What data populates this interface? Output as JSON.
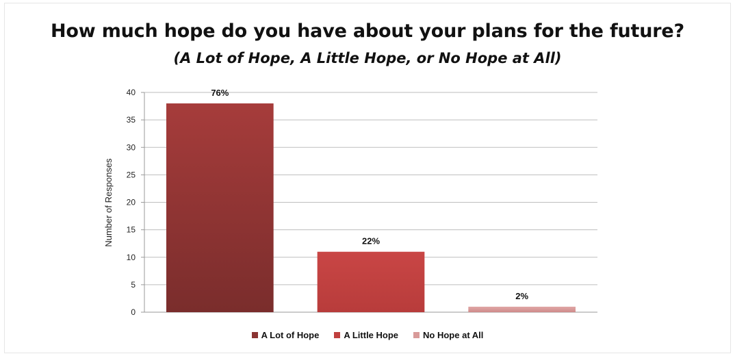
{
  "chart_data": {
    "type": "bar",
    "title": "How much hope do you have about your plans for the future?",
    "subtitle": "(A Lot of Hope, A Little Hope, or No Hope at All)",
    "ylabel": "Number of Responses",
    "xlabel": "",
    "ylim": [
      0,
      40
    ],
    "yticks": [
      0,
      5,
      10,
      15,
      20,
      25,
      30,
      35,
      40
    ],
    "grid": true,
    "legend_position": "bottom",
    "categories": [
      "A Lot of Hope",
      "A Little Hope",
      "No Hope at All"
    ],
    "values": [
      38,
      11,
      1
    ],
    "data_labels": [
      "76%",
      "22%",
      "2%"
    ],
    "colors": [
      "#8b3433",
      "#c0403e",
      "#d89a99"
    ]
  }
}
